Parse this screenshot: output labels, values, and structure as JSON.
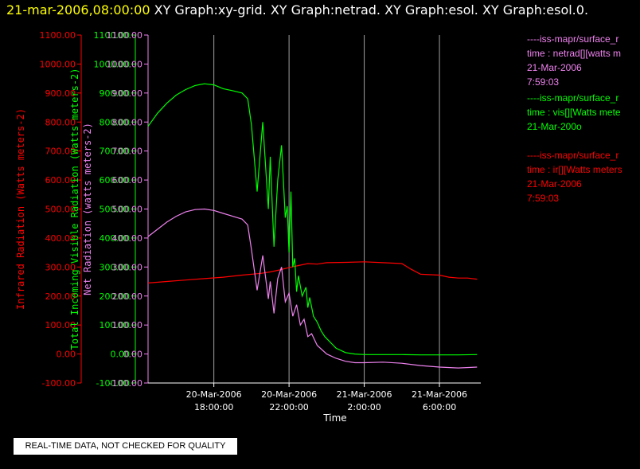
{
  "header": {
    "timestamp": "21-mar-2006,08:00:00",
    "graphs": "XY Graph:xy-grid.  XY Graph:netrad.  XY Graph:esol.  XY Graph:esol.0."
  },
  "disclaimer": "REAL-TIME DATA, NOT CHECKED FOR QUALITY",
  "colors": {
    "background": "#000000",
    "grid": "#a0a0a0",
    "infrared": "#ff0000",
    "visible": "#00ff00",
    "netrad": "#ee82ee",
    "header_highlight": "#ffff00"
  },
  "legend": [
    {
      "color": "#ee82ee",
      "lines": [
        "----iss-mapr/surface_r",
        "time : netrad[][watts m",
        "21-Mar-2006",
        "7:59:03"
      ]
    },
    {
      "color": "#00ff00",
      "lines": [
        "----iss-mapr/surface_r",
        "time : vis[][Watts mete",
        "21-Mar-200o"
      ]
    },
    {
      "color": "#ff0000",
      "lines": [
        "----iss-mapr/surface_r",
        "time : ir[][Watts meters",
        "21-Mar-2006",
        "7:59:03"
      ]
    }
  ],
  "chart_data": {
    "type": "line",
    "title": "",
    "xlabel": "Time",
    "x_ticks": [
      {
        "hour": 0,
        "label": [
          "20-Mar-2006",
          "18:00:00"
        ]
      },
      {
        "hour": 4,
        "label": [
          "20-Mar-2006",
          "22:00:00"
        ]
      },
      {
        "hour": 8,
        "label": [
          "21-Mar-2006",
          "2:00:00"
        ]
      },
      {
        "hour": 12,
        "label": [
          "21-Mar-2006",
          "6:00:00"
        ]
      }
    ],
    "x_range_hours": [
      -3.5,
      14.2
    ],
    "x_origin": "20-Mar-2006 18:00:00",
    "ylim": [
      -100,
      1100
    ],
    "y_ticks": [
      -100,
      0,
      100,
      200,
      300,
      400,
      500,
      600,
      700,
      800,
      900,
      1000,
      1100
    ],
    "y_tick_labels": [
      "-100.00",
      "0.00",
      "100.00",
      "200.00",
      "300.00",
      "400.00",
      "500.00",
      "600.00",
      "700.00",
      "800.00",
      "900.00",
      "1000.00",
      "1100.00"
    ],
    "axes": [
      {
        "name": "Infrared Radiation (Watts meters-2)",
        "color": "#ff0000"
      },
      {
        "name": "Total Incoming Visible Radiation (Watts meters-2)",
        "color": "#00ff00"
      },
      {
        "name": "Net Radiation (watts meters-2)",
        "color": "#ee82ee"
      }
    ],
    "grid": "vertical",
    "series": [
      {
        "name": "ir",
        "color": "#ff0000",
        "x": [
          -3.5,
          -2.5,
          -1.5,
          -0.5,
          0.5,
          1.5,
          2.5,
          3.0,
          3.5,
          4.0,
          4.5,
          5.0,
          5.5,
          6.0,
          7.0,
          8.0,
          9.0,
          10.0,
          10.5,
          11.0,
          12.0,
          12.5,
          13.0,
          13.5,
          14.0
        ],
        "y": [
          245,
          250,
          255,
          260,
          265,
          272,
          278,
          283,
          290,
          298,
          305,
          312,
          310,
          315,
          316,
          318,
          315,
          312,
          292,
          275,
          272,
          265,
          262,
          262,
          258
        ]
      },
      {
        "name": "vis",
        "color": "#00ff00",
        "x": [
          -3.5,
          -3.0,
          -2.5,
          -2.0,
          -1.5,
          -1.0,
          -0.5,
          0.0,
          0.5,
          1.0,
          1.5,
          1.8,
          2.0,
          2.3,
          2.6,
          2.9,
          3.0,
          3.2,
          3.4,
          3.6,
          3.8,
          3.9,
          4.0,
          4.1,
          4.2,
          4.3,
          4.4,
          4.5,
          4.7,
          4.9,
          5.0,
          5.1,
          5.3,
          5.5,
          5.7,
          5.9,
          6.2,
          6.5,
          7.0,
          7.5,
          8.0,
          9.0,
          10.0,
          11.0,
          12.0,
          13.0,
          14.0
        ],
        "y": [
          785,
          830,
          865,
          893,
          912,
          926,
          932,
          928,
          915,
          908,
          900,
          880,
          790,
          560,
          800,
          500,
          680,
          370,
          600,
          720,
          470,
          510,
          350,
          560,
          300,
          330,
          215,
          270,
          200,
          230,
          160,
          195,
          130,
          110,
          80,
          60,
          40,
          20,
          5,
          0,
          -2,
          -2,
          -2,
          -3,
          -3,
          -3,
          -2
        ]
      },
      {
        "name": "netrad",
        "color": "#ee82ee",
        "x": [
          -3.5,
          -3.0,
          -2.5,
          -2.0,
          -1.5,
          -1.0,
          -0.5,
          0.0,
          0.5,
          1.0,
          1.5,
          1.8,
          2.0,
          2.3,
          2.6,
          2.9,
          3.0,
          3.2,
          3.4,
          3.6,
          3.8,
          4.0,
          4.2,
          4.4,
          4.6,
          4.8,
          5.0,
          5.2,
          5.5,
          6.0,
          6.5,
          7.0,
          7.5,
          8.0,
          9.0,
          10.0,
          11.0,
          12.0,
          13.0,
          14.0
        ],
        "y": [
          405,
          430,
          455,
          475,
          490,
          498,
          500,
          495,
          485,
          475,
          465,
          445,
          360,
          220,
          340,
          190,
          250,
          140,
          260,
          300,
          180,
          210,
          130,
          170,
          100,
          120,
          60,
          70,
          30,
          0,
          -15,
          -25,
          -30,
          -30,
          -28,
          -32,
          -40,
          -45,
          -48,
          -45
        ]
      }
    ]
  }
}
